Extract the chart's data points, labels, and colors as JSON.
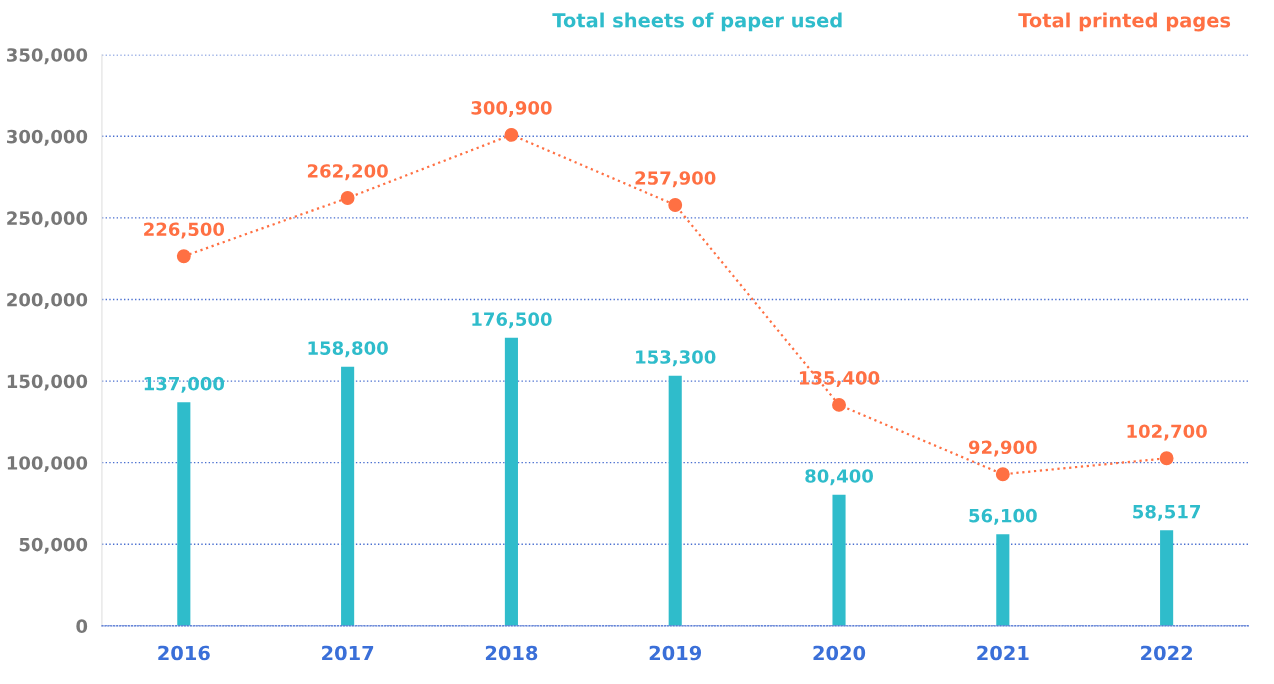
{
  "chart_data": {
    "type": "bar",
    "categories": [
      "2016",
      "2017",
      "2018",
      "2019",
      "2020",
      "2021",
      "2022"
    ],
    "series": [
      {
        "name": "Total sheets of paper used",
        "color": "#2fbccb",
        "values": [
          137000,
          158800,
          176500,
          153300,
          80400,
          56100,
          58517
        ],
        "value_labels": [
          "137,000",
          "158,800",
          "176,500",
          "153,300",
          "80,400",
          "56,100",
          "58,517"
        ]
      },
      {
        "name": "Total printed pages",
        "type": "line",
        "color": "#ff7043",
        "marker": "circle",
        "line_style": "dotted",
        "values": [
          226500,
          262200,
          300900,
          257900,
          135400,
          92900,
          102700
        ],
        "value_labels": [
          "226,500",
          "262,200",
          "300,900",
          "257,900",
          "135,400",
          "92,900",
          "102,700"
        ]
      }
    ],
    "ylim": [
      0,
      350000
    ],
    "yticks": [
      {
        "value": 0,
        "label": "0"
      },
      {
        "value": 50000,
        "label": "50,000"
      },
      {
        "value": 100000,
        "label": "100,000"
      },
      {
        "value": 150000,
        "label": "150,000"
      },
      {
        "value": 200000,
        "label": "200,000"
      },
      {
        "value": 250000,
        "label": "250,000"
      },
      {
        "value": 300000,
        "label": "300,000"
      },
      {
        "value": 350000,
        "label": "350,000"
      }
    ],
    "grid": "y",
    "legend": "top right"
  }
}
